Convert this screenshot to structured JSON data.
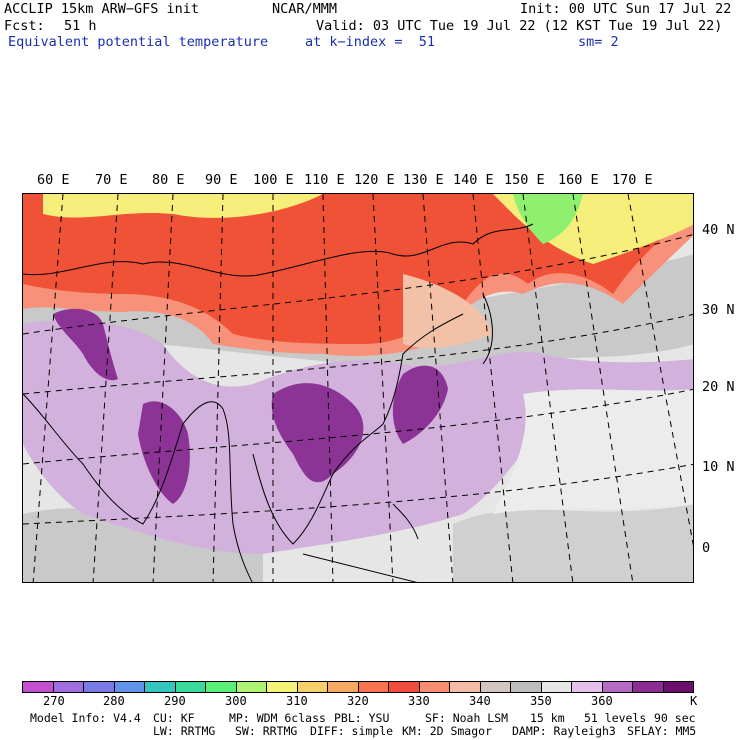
{
  "header": {
    "model": "ACCLIP 15km ARW−GFS init",
    "org": "NCAR/MMM",
    "init": "Init: 00 UTC Sun 17 Jul 22",
    "fcst_label": "Fcst:",
    "fcst_value": "51 h",
    "valid": "Valid: 03 UTC Tue 19 Jul 22 (12 KST Tue 19 Jul 22)",
    "field": "Equivalent potential temperature",
    "level": "at k−index =  51",
    "smooth": "sm= 2"
  },
  "map": {
    "lon_labels": [
      "60 E",
      "70 E",
      "80 E",
      "90 E",
      "100 E",
      "110 E",
      "120 E",
      "130 E",
      "140 E",
      "150 E",
      "160 E",
      "170 E"
    ],
    "lat_labels": [
      "40 N",
      "30 N",
      "20 N",
      "10 N",
      "0"
    ],
    "colors": {
      "purple_dark": "#8c3496",
      "purple_light": "#d2b1dc",
      "red": "#f05238",
      "salmon": "#f8917a",
      "peach": "#f3c1a8",
      "gray": "#c9c9c9",
      "lightgray": "#e6e6e6",
      "yellow": "#f5ee7a",
      "green": "#8ef06e"
    }
  },
  "colorbar": {
    "colors": [
      "#c44fcf",
      "#9f6dde",
      "#7a7ae6",
      "#5f93ec",
      "#36c4c0",
      "#3ad99a",
      "#5cef78",
      "#adf273",
      "#f4f277",
      "#f6cf6a",
      "#f8a860",
      "#f8744f",
      "#f14d3d",
      "#f88c70",
      "#f4bca4",
      "#d3c6c0",
      "#bdbdbd",
      "#e6e6e6",
      "#e3c1e8",
      "#b56ac4",
      "#8d2c95",
      "#6b0f6d"
    ],
    "labels": [
      "270",
      "280",
      "290",
      "300",
      "310",
      "320",
      "330",
      "340",
      "350",
      "360"
    ],
    "unit": "K"
  },
  "footer": {
    "line1": [
      "Model Info: V4.4",
      "CU: KF",
      "MP: WDM 6class",
      "PBL: YSU",
      "SF: Noah LSM",
      "15 km",
      "51 levels",
      "90 sec"
    ],
    "line2": [
      "LW: RRTMG",
      "SW: RRTMG",
      "DIFF: simple",
      "KM: 2D Smagor",
      "DAMP: Rayleigh3",
      "SFLAY: MM5"
    ]
  }
}
